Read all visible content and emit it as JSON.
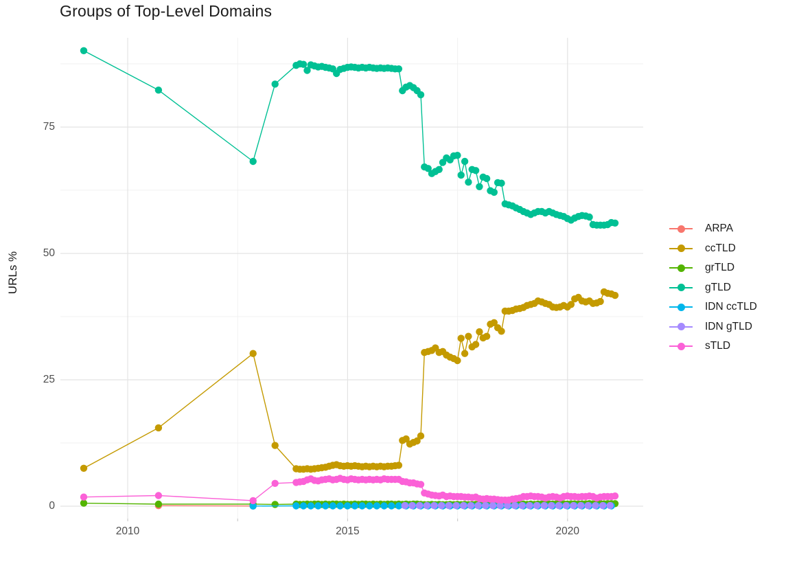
{
  "title": "Groups of Top-Level Domains",
  "chart_data": {
    "type": "line",
    "title": "Groups of Top-Level Domains",
    "xlabel": "",
    "ylabel": "URLs %",
    "x_range": [
      2008.47,
      2021.72
    ],
    "y_range": [
      -2.45,
      92.66
    ],
    "x_ticks": [
      2010,
      2015,
      2020
    ],
    "x_tick_labels": [
      "2010",
      "2015",
      "2020"
    ],
    "x_minor_ticks": [
      2012.5,
      2017.5
    ],
    "y_ticks": [
      0,
      25,
      50,
      75
    ],
    "y_tick_labels": [
      "0",
      "25",
      "50",
      "75"
    ],
    "y_minor_ticks": [
      12.5,
      37.5,
      62.5,
      87.5
    ],
    "grid": true,
    "legend_position": "right",
    "marker_style": "point-on-line",
    "series": [
      {
        "name": "ARPA",
        "color": "#F8766D",
        "points": [
          [
            2010.7,
            0.1
          ],
          [
            2012.85,
            0.03
          ]
        ]
      },
      {
        "name": "ccTLD",
        "color": "#C49A00",
        "points": [
          [
            2009.0,
            7.5
          ],
          [
            2010.7,
            15.5
          ],
          [
            2012.85,
            30.2
          ],
          [
            2013.35,
            12.0
          ]
        ],
        "x0": 2013.83,
        "dx": 0.08333,
        "values": [
          7.4,
          7.3,
          7.3,
          7.4,
          7.3,
          7.4,
          7.5,
          7.6,
          7.7,
          7.9,
          8.1,
          8.2,
          8.0,
          7.9,
          8.0,
          7.9,
          8.0,
          7.9,
          7.8,
          7.9,
          7.8,
          7.9,
          7.8,
          7.9,
          7.8,
          7.9,
          7.9,
          8.0,
          8.1,
          13.0,
          13.3,
          12.3,
          12.6,
          12.9,
          13.9,
          30.4,
          30.6,
          30.8,
          31.3,
          30.4,
          30.6,
          29.9,
          29.5,
          29.2,
          28.8,
          33.2,
          30.2,
          33.6,
          31.5,
          32.0,
          34.5,
          33.3,
          33.6,
          36.0,
          36.3,
          35.3,
          34.6,
          38.6,
          38.6,
          38.7,
          39.0,
          39.1,
          39.3,
          39.7,
          39.9,
          40.1,
          40.6,
          40.4,
          40.1,
          39.9,
          39.4,
          39.3,
          39.4,
          39.7,
          39.4,
          39.9,
          41.0,
          41.3,
          40.6,
          40.4,
          40.6,
          40.1,
          40.2,
          40.5,
          42.4,
          42.1,
          42.0,
          41.7
        ]
      },
      {
        "name": "grTLD",
        "color": "#53B400",
        "points": [
          [
            2009.0,
            0.6
          ],
          [
            2010.7,
            0.4
          ],
          [
            2012.85,
            0.4
          ],
          [
            2013.35,
            0.35
          ]
        ],
        "x0": 2013.83,
        "dx": 0.08333,
        "values": [
          0.4,
          0.35,
          0.35,
          0.4,
          0.35,
          0.4,
          0.4,
          0.35,
          0.4,
          0.35,
          0.4,
          0.4,
          0.35,
          0.4,
          0.35,
          0.35,
          0.4,
          0.35,
          0.4,
          0.4,
          0.35,
          0.4,
          0.35,
          0.4,
          0.35,
          0.4,
          0.4,
          0.35,
          0.4,
          0.35,
          0.4,
          0.35,
          0.4,
          0.4,
          0.35,
          0.3,
          0.3,
          0.35,
          0.3,
          0.35,
          0.3,
          0.3,
          0.35,
          0.3,
          0.35,
          0.3,
          0.35,
          0.3,
          0.3,
          0.35,
          0.3,
          0.35,
          0.3,
          0.35,
          0.35,
          0.3,
          0.35,
          0.3,
          0.35,
          0.35,
          0.4,
          0.35,
          0.4,
          0.35,
          0.4,
          0.35,
          0.4,
          0.4,
          0.35,
          0.4,
          0.4,
          0.45,
          0.4,
          0.45,
          0.4,
          0.45,
          0.45,
          0.4,
          0.45,
          0.45,
          0.5,
          0.45,
          0.5,
          0.5,
          0.45,
          0.5,
          0.5,
          0.5
        ]
      },
      {
        "name": "gTLD",
        "color": "#00C094",
        "points": [
          [
            2009.0,
            90.1
          ],
          [
            2010.7,
            82.3
          ],
          [
            2012.85,
            68.2
          ],
          [
            2013.35,
            83.5
          ]
        ],
        "x0": 2013.83,
        "dx": 0.08333,
        "values": [
          87.2,
          87.5,
          87.4,
          86.2,
          87.3,
          87.1,
          86.9,
          87.0,
          86.8,
          86.7,
          86.5,
          85.6,
          86.4,
          86.6,
          86.8,
          86.9,
          86.8,
          86.7,
          86.8,
          86.7,
          86.8,
          86.7,
          86.6,
          86.7,
          86.6,
          86.7,
          86.6,
          86.5,
          86.5,
          82.2,
          82.9,
          83.2,
          82.8,
          82.2,
          81.4,
          67.1,
          66.8,
          65.8,
          66.2,
          66.6,
          68.0,
          68.9,
          68.5,
          69.3,
          69.4,
          65.5,
          68.2,
          64.1,
          66.6,
          66.4,
          63.2,
          65.1,
          64.8,
          62.4,
          62.1,
          64.0,
          63.9,
          59.8,
          59.6,
          59.4,
          59.0,
          58.7,
          58.3,
          58.0,
          57.7,
          58.0,
          58.3,
          58.3,
          58.0,
          58.3,
          58.0,
          57.7,
          57.5,
          57.3,
          56.9,
          56.6,
          57.0,
          57.3,
          57.5,
          57.4,
          57.2,
          55.7,
          55.6,
          55.6,
          55.6,
          55.7,
          56.1,
          56.0
        ]
      },
      {
        "name": "IDN ccTLD",
        "color": "#00B6EB",
        "points": [
          [
            2012.85,
            0.02
          ]
        ],
        "x0": 2013.83,
        "dx": 0.1667,
        "n": 44,
        "const": 0.06
      },
      {
        "name": "IDN gTLD",
        "color": "#A58AFF",
        "points": [],
        "x0": 2016.3,
        "dx": 0.1667,
        "n": 29,
        "const": 0.12
      },
      {
        "name": "sTLD",
        "color": "#FB61D7",
        "points": [
          [
            2009.0,
            1.8
          ],
          [
            2010.7,
            2.1
          ],
          [
            2012.85,
            1.1
          ],
          [
            2013.35,
            4.5
          ]
        ],
        "x0": 2013.83,
        "dx": 0.08333,
        "values": [
          4.7,
          4.8,
          4.9,
          5.2,
          5.4,
          5.1,
          5.0,
          5.2,
          5.3,
          5.4,
          5.2,
          5.3,
          5.5,
          5.3,
          5.2,
          5.4,
          5.3,
          5.2,
          5.3,
          5.2,
          5.3,
          5.2,
          5.3,
          5.2,
          5.4,
          5.3,
          5.3,
          5.3,
          5.3,
          4.9,
          4.8,
          4.6,
          4.6,
          4.4,
          4.3,
          2.6,
          2.4,
          2.2,
          2.1,
          2.0,
          2.2,
          1.9,
          2.0,
          1.9,
          1.9,
          1.9,
          1.8,
          1.8,
          1.7,
          1.8,
          1.5,
          1.4,
          1.5,
          1.4,
          1.4,
          1.3,
          1.2,
          1.2,
          1.2,
          1.4,
          1.5,
          1.6,
          1.9,
          1.9,
          2.0,
          1.9,
          1.9,
          1.8,
          1.6,
          1.8,
          1.9,
          1.8,
          1.6,
          1.9,
          2.0,
          1.9,
          1.9,
          1.8,
          1.9,
          1.9,
          2.0,
          1.9,
          1.6,
          1.8,
          1.9,
          1.9,
          1.9,
          2.0
        ]
      }
    ],
    "style": {
      "grid_major_color": "#e3e3e3",
      "grid_minor_color": "#efefef",
      "axis_tick_color": "#cccccc",
      "background": "#ffffff"
    }
  }
}
